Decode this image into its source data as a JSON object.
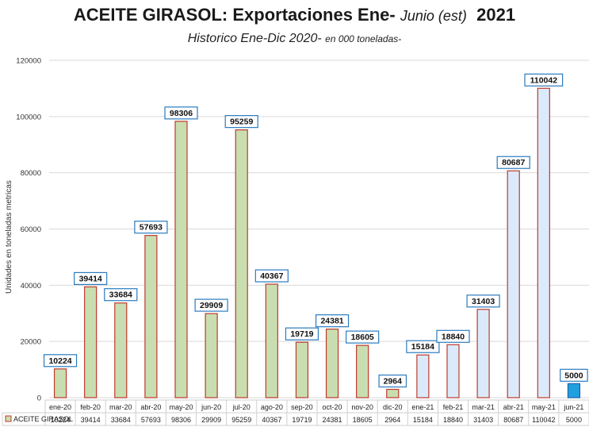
{
  "title": {
    "main": "ACEITE GIRASOL: Exportaciones Ene-",
    "italic": "Junio (est)",
    "year": "2021"
  },
  "subtitle": {
    "main": "Historico Ene-Dic 2020-",
    "small": "en 000 toneladas-"
  },
  "chart_data": {
    "type": "bar",
    "ylabel": "Unidades en toneladas metricas",
    "ylim": [
      0,
      120000
    ],
    "yticks": [
      0,
      20000,
      40000,
      60000,
      80000,
      100000,
      120000
    ],
    "grid": true,
    "legend": "table-bottom-left",
    "categories": [
      "ene-20",
      "feb-20",
      "mar-20",
      "abr-20",
      "may-20",
      "jun-20",
      "jul-20",
      "ago-20",
      "sep-20",
      "oct-20",
      "nov-20",
      "dic-20",
      "ene-21",
      "feb-21",
      "mar-21",
      "abr-21",
      "may-21",
      "jun-21"
    ],
    "series": [
      {
        "name": "ACEITE GIRASOL",
        "values": [
          10224,
          39414,
          33684,
          57693,
          98306,
          29909,
          95259,
          40367,
          19719,
          24381,
          18605,
          2964,
          15184,
          18840,
          31403,
          80687,
          110042,
          5000
        ]
      }
    ],
    "colors": {
      "fill_2020": "#c9deb0",
      "fill_2021": "#dbeafa",
      "fill_estimate": "#21a0e0",
      "bar_stroke": "#c0392b",
      "estimate_stroke": "#1f5fa8",
      "label_border": "#2a7bbf",
      "grid": "#d9d9d9"
    }
  }
}
